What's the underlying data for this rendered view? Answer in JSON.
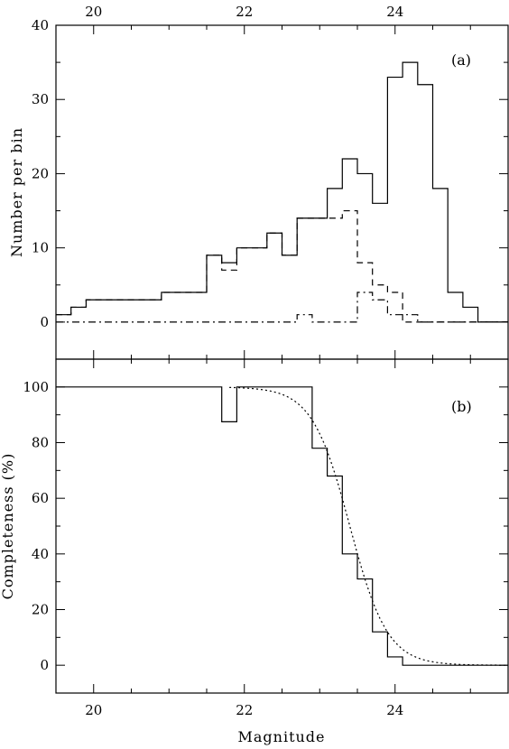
{
  "figure": {
    "xlabel": "Magnitude"
  },
  "chart_data": [
    {
      "type": "line",
      "panel_label": "(a)",
      "ylabel": "Number per bin",
      "xlim": [
        19.5,
        25.5
      ],
      "ylim": [
        -5,
        40
      ],
      "x_ticks": [
        20,
        22,
        24
      ],
      "x_ticks_top": [
        20,
        22,
        24
      ],
      "y_ticks": [
        0,
        10,
        20,
        30,
        40
      ],
      "grid": false,
      "legend": "none",
      "bin_edges": [
        19.5,
        19.7,
        19.9,
        20.1,
        20.3,
        20.5,
        20.7,
        20.9,
        21.1,
        21.3,
        21.5,
        21.7,
        21.9,
        22.1,
        22.3,
        22.5,
        22.7,
        22.9,
        23.1,
        23.3,
        23.5,
        23.7,
        23.9,
        24.1,
        24.3,
        24.5,
        24.7,
        24.9,
        25.1,
        25.3,
        25.5
      ],
      "series": [
        {
          "style": "solid",
          "values": [
            1,
            2,
            3,
            3,
            3,
            3,
            3,
            4,
            4,
            4,
            9,
            8,
            10,
            10,
            12,
            9,
            14,
            14,
            18,
            22,
            20,
            16,
            33,
            35,
            32,
            18,
            4,
            2,
            0,
            0
          ]
        },
        {
          "style": "dashed",
          "values": [
            1,
            2,
            3,
            3,
            3,
            3,
            3,
            4,
            4,
            4,
            9,
            7,
            10,
            10,
            12,
            9,
            14,
            14,
            14,
            15,
            8,
            5,
            4,
            0,
            0,
            0,
            0,
            0,
            0,
            0
          ]
        },
        {
          "style": "dash-dot",
          "values": [
            0,
            0,
            0,
            0,
            0,
            0,
            0,
            0,
            0,
            0,
            0,
            0,
            0,
            0,
            0,
            0,
            1,
            0,
            0,
            0,
            4,
            3,
            1,
            1,
            0,
            0,
            0,
            0,
            0,
            0
          ]
        }
      ]
    },
    {
      "type": "line",
      "panel_label": "(b)",
      "ylabel": "Completeness (%)",
      "xlabel": "Magnitude",
      "xlim": [
        19.5,
        25.5
      ],
      "ylim": [
        -10,
        110
      ],
      "x_ticks": [
        20,
        22,
        24
      ],
      "y_ticks": [
        0,
        20,
        40,
        60,
        80,
        100
      ],
      "grid": false,
      "legend": "none",
      "bin_edges": [
        19.5,
        19.7,
        19.9,
        20.1,
        20.3,
        20.5,
        20.7,
        20.9,
        21.1,
        21.3,
        21.5,
        21.7,
        21.9,
        22.1,
        22.3,
        22.5,
        22.7,
        22.9,
        23.1,
        23.3,
        23.5,
        23.7,
        23.9,
        24.1,
        24.3,
        24.5,
        24.7,
        24.9,
        25.1,
        25.3,
        25.5
      ],
      "series": [
        {
          "style": "solid",
          "values": [
            100,
            100,
            100,
            100,
            100,
            100,
            100,
            100,
            100,
            100,
            100,
            87.5,
            100,
            100,
            100,
            100,
            100,
            78,
            68,
            40,
            31,
            12,
            3,
            0,
            0,
            0,
            0,
            0,
            0,
            0
          ]
        },
        {
          "style": "dotted",
          "fit": {
            "m50": 23.4,
            "width": 0.25,
            "xrange": [
              21.8,
              25.5
            ]
          }
        }
      ]
    }
  ]
}
